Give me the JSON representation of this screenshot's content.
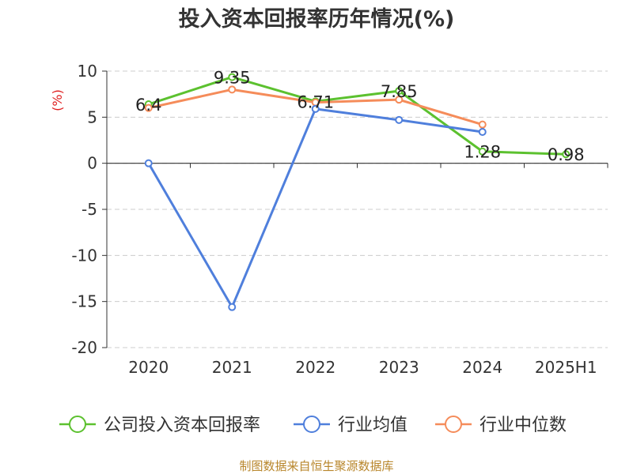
{
  "chart_data": {
    "type": "line",
    "title": "投入资本回报率历年情况(%)",
    "ylabel": "(%)",
    "categories": [
      "2020",
      "2021",
      "2022",
      "2023",
      "2024",
      "2025H1"
    ],
    "ylim": [
      -20,
      10
    ],
    "yticks": [
      10,
      5,
      0,
      -5,
      -10,
      -15,
      -20
    ],
    "grid": true,
    "legend_position": "bottom",
    "series": [
      {
        "name": "公司投入资本回报率",
        "color": "#5cc12f",
        "values": [
          6.4,
          9.35,
          6.71,
          7.85,
          1.28,
          0.98
        ],
        "labels": [
          "6.4",
          "9.35",
          "6.71",
          "7.85",
          "1.28",
          "0.98"
        ]
      },
      {
        "name": "行业均值",
        "color": "#4f7fdc",
        "values": [
          0.0,
          -15.6,
          5.9,
          4.7,
          3.4,
          null
        ]
      },
      {
        "name": "行业中位数",
        "color": "#f58c5a",
        "values": [
          6.0,
          8.0,
          6.6,
          6.9,
          4.2,
          null
        ]
      }
    ],
    "source": "制图数据来自恒生聚源数据库"
  }
}
